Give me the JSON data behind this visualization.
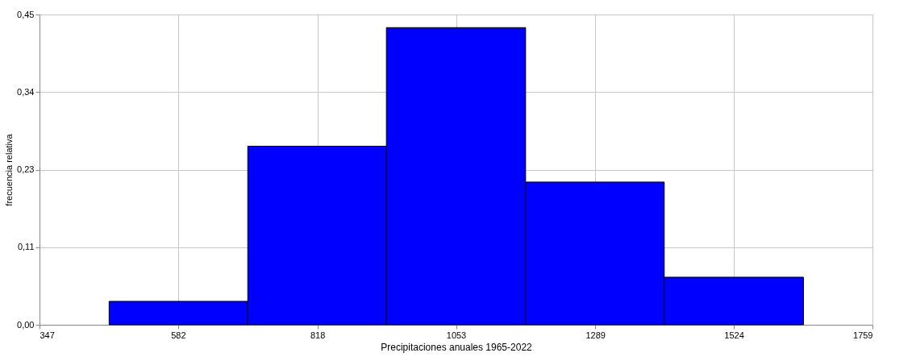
{
  "chart_data": {
    "type": "histogram",
    "xlabel": "Precipitaciones anuales 1965-2022",
    "ylabel": "frecuencia relativa",
    "color": "#0000ff",
    "bins": [
      465,
      700,
      935,
      1171,
      1406,
      1642
    ],
    "values": [
      0.034,
      0.259,
      0.431,
      0.207,
      0.069
    ],
    "xlim": [
      347,
      1759
    ],
    "xticks": [
      347,
      582,
      818,
      1053,
      1289,
      1524,
      1759
    ],
    "ylim": [
      0,
      0.45
    ],
    "yticks": [
      {
        "value": 0,
        "label": "0,00"
      },
      {
        "value": 0.1125,
        "label": "0,11"
      },
      {
        "value": 0.225,
        "label": "0,23"
      },
      {
        "value": 0.3375,
        "label": "0,34"
      },
      {
        "value": 0.45,
        "label": "0,45"
      }
    ],
    "grid": true
  }
}
